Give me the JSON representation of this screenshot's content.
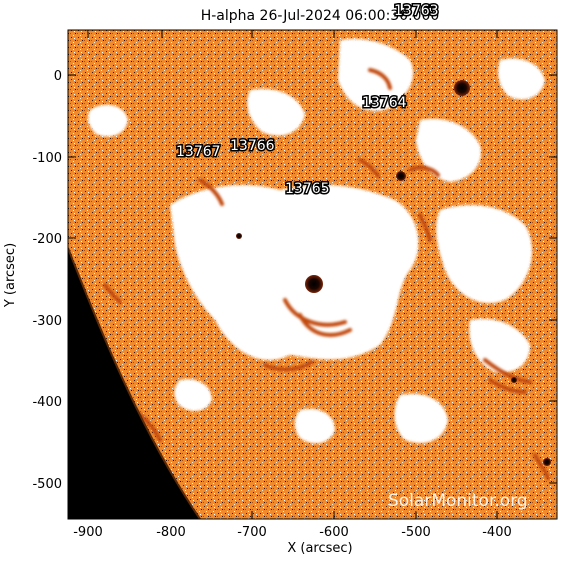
{
  "title": "H-alpha 26-Jul-2024 06:00:30.000",
  "xlabel": "X (arcsec)",
  "ylabel": "Y (arcsec)",
  "x_ticks": [
    "-900",
    "-800",
    "-700",
    "-600",
    "-500",
    "-400"
  ],
  "y_ticks": [
    "0",
    "-100",
    "-200",
    "-300",
    "-400",
    "-500"
  ],
  "regions": [
    "13763",
    "13764",
    "13766",
    "13767",
    "13765"
  ],
  "watermark": "SolarMonitor.org",
  "colors": {
    "disk": "#f08a2c",
    "plage": "#ffffff",
    "filament": "#c24a0e",
    "sunspot": "#140500",
    "background": "#000000"
  }
}
